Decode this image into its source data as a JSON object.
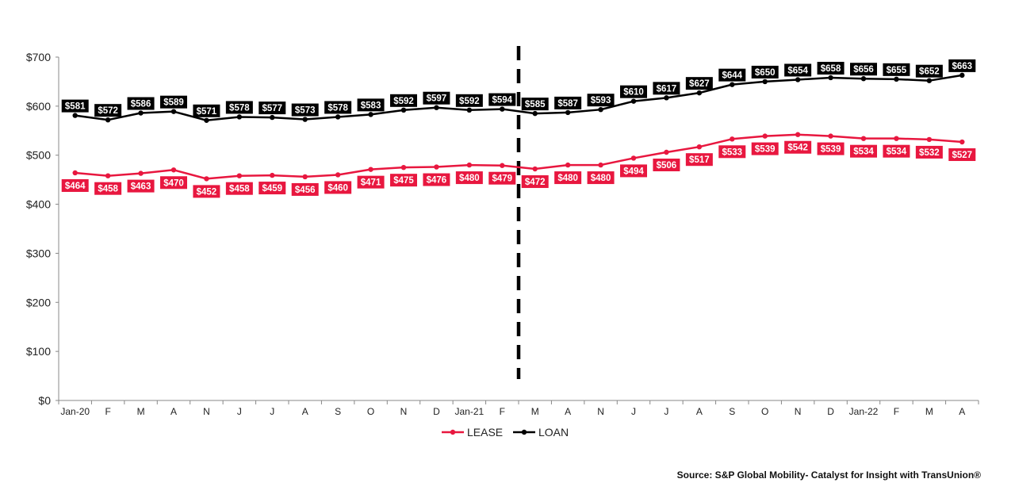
{
  "chart_data": {
    "type": "line",
    "categories": [
      "Jan-20",
      "F",
      "M",
      "A",
      "N",
      "J",
      "J",
      "A",
      "S",
      "O",
      "N",
      "D",
      "Jan-21",
      "F",
      "M",
      "A",
      "N",
      "J",
      "J",
      "A",
      "S",
      "O",
      "N",
      "D",
      "Jan-22",
      "F",
      "M",
      "A"
    ],
    "series": [
      {
        "name": "LEASE",
        "color": "#e8173f",
        "values": [
          464,
          458,
          463,
          470,
          452,
          458,
          459,
          456,
          460,
          471,
          475,
          476,
          480,
          479,
          472,
          480,
          480,
          494,
          506,
          517,
          533,
          539,
          542,
          539,
          534,
          534,
          532,
          527
        ],
        "labels": [
          "$464",
          "$458",
          "$463",
          "$470",
          "$452",
          "$458",
          "$459",
          "$456",
          "$460",
          "$471",
          "$475",
          "$476",
          "$480",
          "$479",
          "$472",
          "$480",
          "$480",
          "$494",
          "$506",
          "$517",
          "$533",
          "$539",
          "$542",
          "$539",
          "$534",
          "$534",
          "$532",
          "$527"
        ]
      },
      {
        "name": "LOAN",
        "color": "#000000",
        "values": [
          581,
          572,
          586,
          589,
          571,
          578,
          577,
          573,
          578,
          583,
          592,
          597,
          592,
          594,
          585,
          587,
          593,
          610,
          617,
          627,
          644,
          650,
          654,
          658,
          656,
          655,
          652,
          663
        ],
        "labels": [
          "$581",
          "$572",
          "$586",
          "$589",
          "$571",
          "$578",
          "$577",
          "$573",
          "$578",
          "$583",
          "$592",
          "$597",
          "$592",
          "$594",
          "$585",
          "$587",
          "$593",
          "$610",
          "$617",
          "$627",
          "$644",
          "$650",
          "$654",
          "$658",
          "$656",
          "$655",
          "$652",
          "$663"
        ]
      }
    ],
    "y_ticks": [
      "$0",
      "$100",
      "$200",
      "$300",
      "$400",
      "$500",
      "$600",
      "$700"
    ],
    "ylim": [
      0,
      700
    ],
    "y_step": 100,
    "divider_after_category": 13,
    "legend_placement": "bottom-center",
    "grid": false
  },
  "source": "Source: S&P Global Mobility- Catalyst for Insight with TransUnion®"
}
